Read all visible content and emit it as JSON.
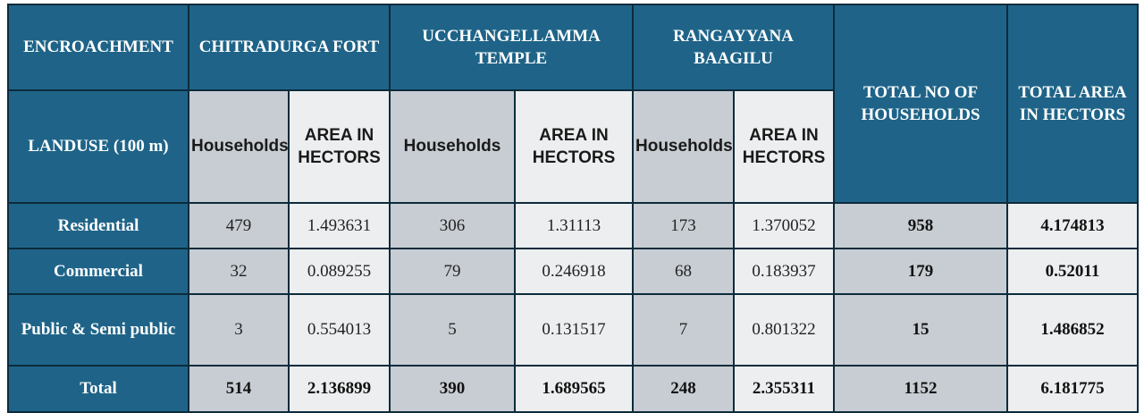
{
  "table": {
    "encroachment_label": "ENCROACHMENT",
    "landuse_label": "LANDUSE (100 m)",
    "sites": [
      {
        "name": "CHITRADURGA FORT",
        "households_label": "Households",
        "area_label": "AREA IN HECTORS"
      },
      {
        "name": "UCCHANGELLAMMA TEMPLE",
        "households_label": "Households",
        "area_label": "AREA IN HECTORS"
      },
      {
        "name": "RANGAYYANA BAAGILU",
        "households_label": "Households",
        "area_label": "AREA IN HECTORS"
      }
    ],
    "total_households_label": "TOTAL NO OF HOUSEHOLDS",
    "total_area_label": "TOTAL AREA IN HECTORS",
    "rows": [
      {
        "label": "Residential",
        "c1_hh": "479",
        "c1_area": "1.493631",
        "c2_hh": "306",
        "c2_area": "1.31113",
        "c3_hh": "173",
        "c3_area": "1.370052",
        "total_hh": "958",
        "total_area": "4.174813"
      },
      {
        "label": "Commercial",
        "c1_hh": "32",
        "c1_area": "0.089255",
        "c2_hh": "79",
        "c2_area": "0.246918",
        "c3_hh": "68",
        "c3_area": "0.183937",
        "total_hh": "179",
        "total_area": "0.52011"
      },
      {
        "label": "Public & Semi public",
        "c1_hh": "3",
        "c1_area": "0.554013",
        "c2_hh": "5",
        "c2_area": "0.131517",
        "c3_hh": "7",
        "c3_area": "0.801322",
        "total_hh": "15",
        "total_area": "1.486852"
      },
      {
        "label": "Total",
        "c1_hh": "514",
        "c1_area": "2.136899",
        "c2_hh": "390",
        "c2_area": "1.689565",
        "c3_hh": "248",
        "c3_area": "2.355311",
        "total_hh": "1152",
        "total_area": "6.181775"
      }
    ],
    "colors": {
      "header_bg": "#1f6488",
      "header_text": "#ffffff",
      "cell_gray": "#c8cdd3",
      "cell_light": "#eceeef",
      "border": "#0c2b3b"
    }
  }
}
